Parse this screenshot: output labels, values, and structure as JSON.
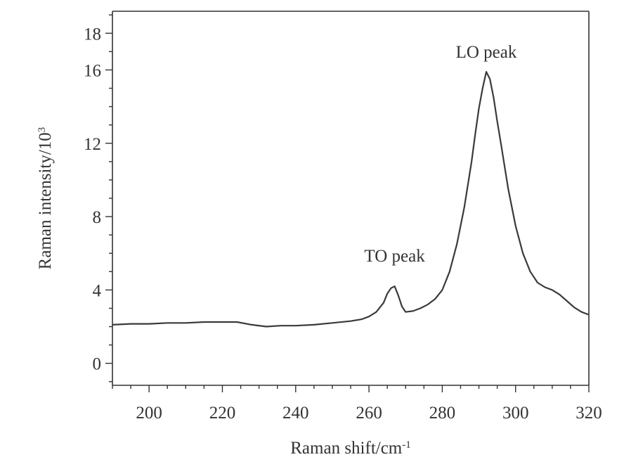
{
  "chart_data": {
    "type": "line",
    "xlabel": "Raman shift/cm",
    "xlabel_sup": "-1",
    "ylabel": "Raman intensity/10",
    "ylabel_sup": "3",
    "xlim": [
      190,
      320
    ],
    "ylim": [
      -1.2,
      19.2
    ],
    "x_ticks": [
      200,
      220,
      240,
      260,
      280,
      300,
      320
    ],
    "y_ticks": [
      0,
      4,
      8,
      12,
      16,
      18
    ],
    "x_minor_step": 5,
    "y_minor_step": 1,
    "grid": false,
    "annotations": [
      {
        "text": "TO peak",
        "x": 267,
        "y": 4.2
      },
      {
        "text": "LO peak",
        "x": 292,
        "y": 15.9
      }
    ],
    "series": [
      {
        "color": "#3a3a3a",
        "x": [
          190,
          195,
          200,
          205,
          210,
          215,
          220,
          224,
          228,
          232,
          236,
          240,
          245,
          250,
          255,
          258,
          260,
          262,
          264,
          265,
          266,
          267,
          268,
          269,
          270,
          272,
          274,
          276,
          278,
          280,
          282,
          284,
          286,
          288,
          289,
          290,
          291,
          292,
          293,
          294,
          295,
          296,
          298,
          300,
          302,
          304,
          306,
          308,
          310,
          312,
          314,
          316,
          318,
          320
        ],
        "y": [
          2.1,
          2.15,
          2.15,
          2.2,
          2.2,
          2.25,
          2.25,
          2.25,
          2.1,
          2.0,
          2.05,
          2.05,
          2.1,
          2.2,
          2.3,
          2.4,
          2.55,
          2.8,
          3.3,
          3.8,
          4.1,
          4.2,
          3.7,
          3.1,
          2.8,
          2.85,
          3.0,
          3.2,
          3.5,
          4.0,
          5.0,
          6.5,
          8.5,
          11.0,
          12.5,
          13.9,
          15.0,
          15.9,
          15.5,
          14.5,
          13.2,
          12.0,
          9.5,
          7.5,
          6.0,
          5.0,
          4.4,
          4.15,
          4.0,
          3.75,
          3.4,
          3.05,
          2.8,
          2.65
        ]
      }
    ]
  }
}
